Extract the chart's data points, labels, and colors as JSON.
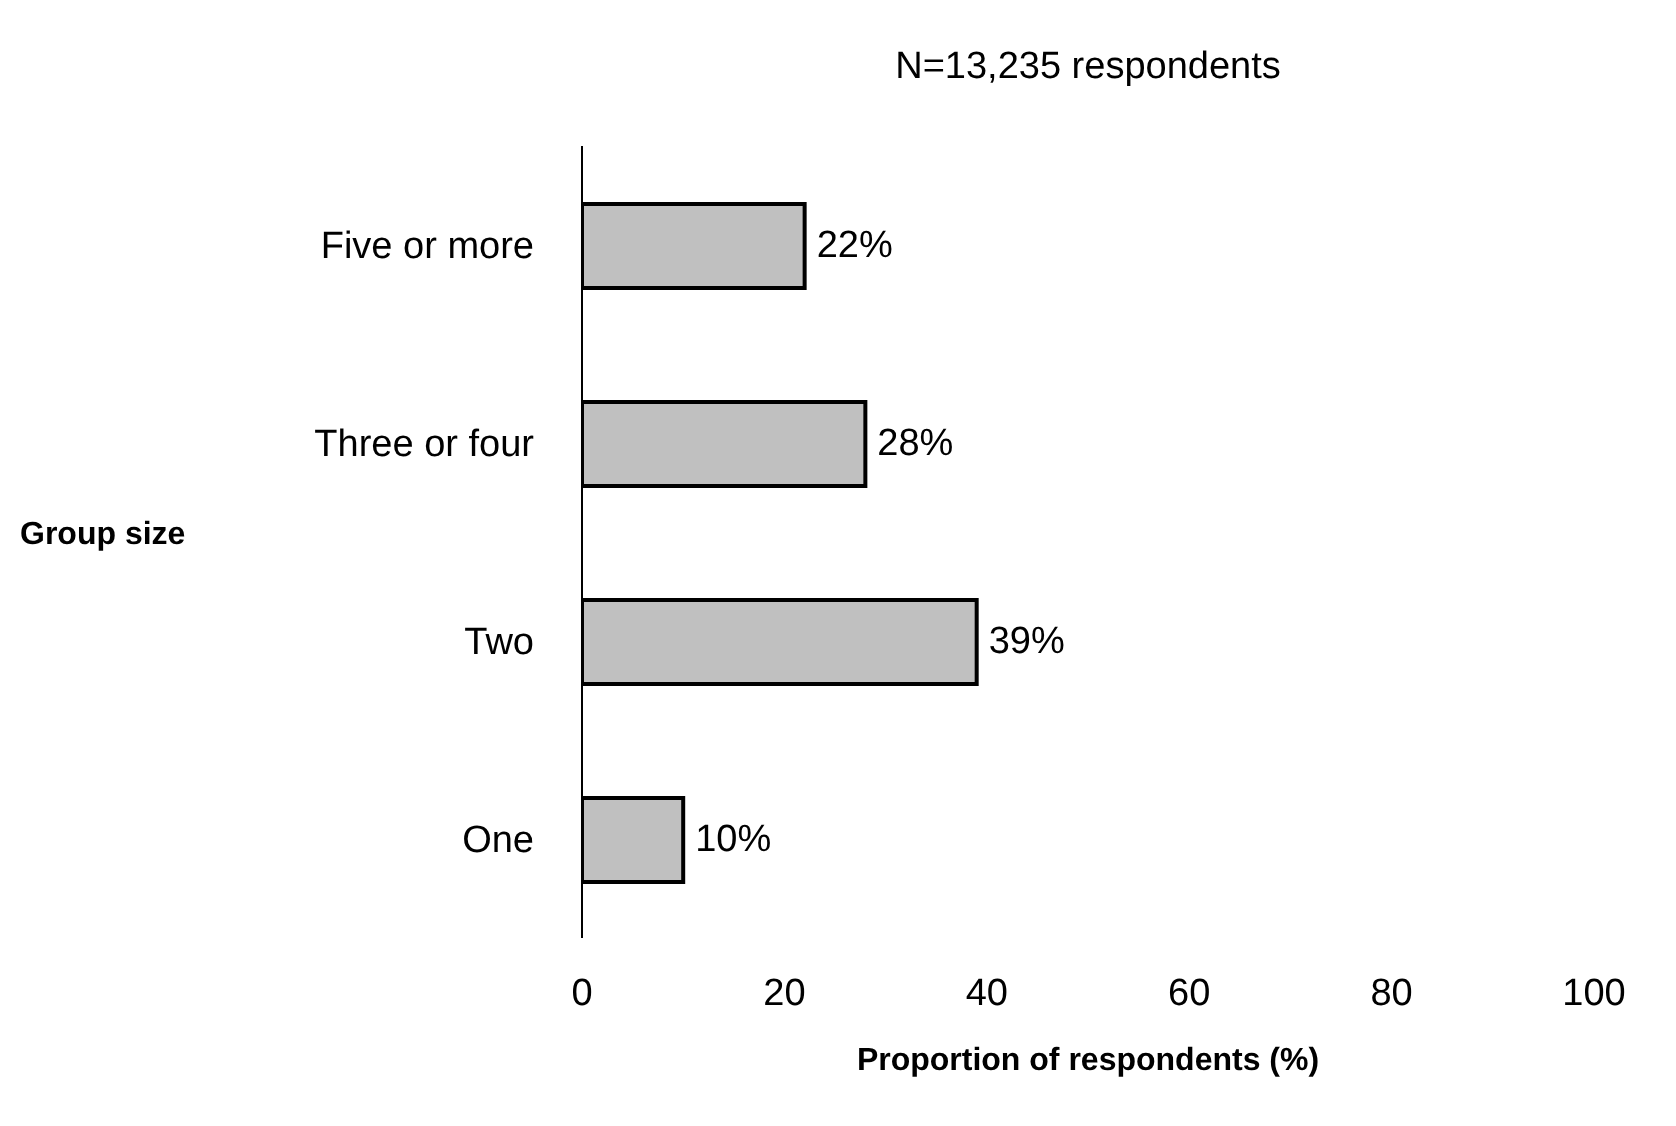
{
  "chart_data": {
    "type": "bar",
    "orientation": "horizontal",
    "title": "N=13,235 respondents",
    "xlabel": "Proportion of respondents (%)",
    "ylabel": "Group size",
    "categories": [
      "Five or more",
      "Three or four",
      "Two",
      "One"
    ],
    "values": [
      22,
      28,
      39,
      10
    ],
    "value_labels": [
      "22%",
      "28%",
      "39%",
      "10%"
    ],
    "color": "#c0c0c0",
    "xlim": [
      0,
      100
    ],
    "xticks": [
      0,
      20,
      40,
      60,
      80,
      100
    ],
    "grid": false,
    "legend": false
  }
}
